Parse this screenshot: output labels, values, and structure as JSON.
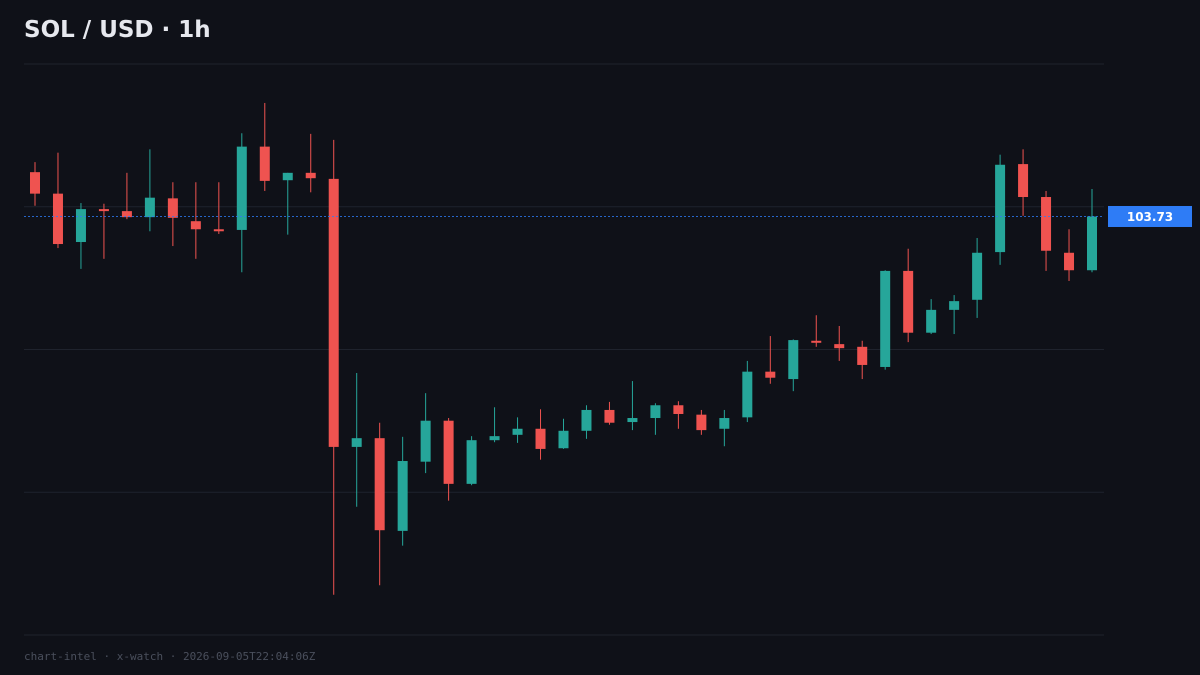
{
  "chart_data": {
    "type": "candlestick",
    "title": "SOL / USD  ·  1h",
    "footer": "chart-intel · x-watch · 2026-09-05T22:04:06Z",
    "up_color": "#26a69a",
    "down_color": "#ef5350",
    "ylim": [
      97.5,
      106
    ],
    "open": [
      104.39,
      104.07,
      103.35,
      103.84,
      103.81,
      103.72,
      104.0,
      103.66,
      103.54,
      103.53,
      104.77,
      104.27,
      104.38,
      104.29,
      100.3,
      100.43,
      99.05,
      100.08,
      100.69,
      99.75,
      100.4,
      100.48,
      100.57,
      100.28,
      100.54,
      100.85,
      100.67,
      100.73,
      100.92,
      100.78,
      100.57,
      100.74,
      101.42,
      101.31,
      101.88,
      101.83,
      101.79,
      101.49,
      102.92,
      102.0,
      102.34,
      102.49,
      103.2,
      104.51,
      104.02,
      103.19,
      102.93
    ],
    "high": [
      104.54,
      104.68,
      103.93,
      103.92,
      104.38,
      104.73,
      104.24,
      104.24,
      104.24,
      104.97,
      105.42,
      104.38,
      104.96,
      104.87,
      101.4,
      100.66,
      100.45,
      101.1,
      100.73,
      100.46,
      100.89,
      100.74,
      100.86,
      100.72,
      100.92,
      100.97,
      101.28,
      100.95,
      100.98,
      100.85,
      100.85,
      101.58,
      101.95,
      101.9,
      102.26,
      102.1,
      101.88,
      102.93,
      103.25,
      102.5,
      102.56,
      103.41,
      104.65,
      104.73,
      104.11,
      103.54,
      104.14
    ],
    "low": [
      103.89,
      103.26,
      102.95,
      103.1,
      103.69,
      103.51,
      103.29,
      103.1,
      103.47,
      102.9,
      104.11,
      103.46,
      104.09,
      98.1,
      99.41,
      98.24,
      98.83,
      99.91,
      99.5,
      99.73,
      100.37,
      100.36,
      100.11,
      100.27,
      100.42,
      100.63,
      100.55,
      100.48,
      100.57,
      100.48,
      100.31,
      100.67,
      101.24,
      101.13,
      101.79,
      101.58,
      101.31,
      101.45,
      101.86,
      101.98,
      101.98,
      102.22,
      103.01,
      103.74,
      102.92,
      102.77,
      102.9
    ],
    "close": [
      104.07,
      103.32,
      103.84,
      103.81,
      103.72,
      104.01,
      103.71,
      103.54,
      103.51,
      104.77,
      104.26,
      104.38,
      104.3,
      100.3,
      100.43,
      99.06,
      100.09,
      100.69,
      99.75,
      100.4,
      100.46,
      100.57,
      100.27,
      100.54,
      100.85,
      100.66,
      100.73,
      100.92,
      100.79,
      100.55,
      100.73,
      101.42,
      101.33,
      101.89,
      101.85,
      101.77,
      101.52,
      102.92,
      102.0,
      102.34,
      102.47,
      103.19,
      104.5,
      104.02,
      103.22,
      102.93,
      103.73
    ],
    "last_price_color": "#2e7cf6"
  }
}
